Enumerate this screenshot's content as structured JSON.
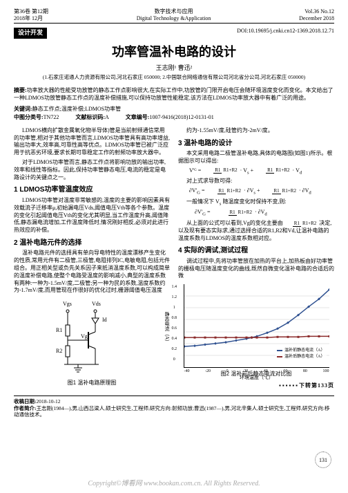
{
  "header": {
    "vol_issue_cn": "第36卷 第12期",
    "date_cn": "2018年 12月",
    "journal_cn": "数字技术与应用",
    "journal_en": "Digital Technology &Application",
    "vol_issue_en": "Vol.36 No.12",
    "date_en": "December 2018"
  },
  "section_tag": "设计开发",
  "doi": "DOI:10.19695/j.cnki.cn12-1369.2018.12.71",
  "title": "功率管温补电路的设计",
  "authors": "王志刚¹ 曹迅²",
  "affiliations": "(1.石家庄诺通人力资源有限公司,河北石家庄 050000;\n2.中国联合网络通信有限公司河北省分公司,河北石家庄 050000)",
  "abstract_label": "摘要:",
  "abstract_text": "功率放大器的性能受功放管的静态工作点影响很大,在实际工作中,功放管的门限开启电压会随环境温度变化而变化。本文给出了一种LDMOS功放管静态工作点的温度补偿措施,可以保持功放管性能稳定,该方法在LDMOS功率放大器中有着广泛的用途。",
  "keywords_label": "关键词:",
  "keywords_text": "静态工作点;温度补偿;LDMOS功率管",
  "class_no_label": "中图分类号:",
  "class_no": "TN722",
  "doc_code_label": "文献标识码:",
  "doc_code": "A",
  "article_no_label": "文章编号:",
  "article_no": "1007-9416(2018)12-0131-01",
  "col1": {
    "p1": "LDMOS横向扩散金属氧化物半导体)管是当前射频通信常用的功率管,相对于其他功率管而言,LDMOS功率管具有高功率增益,输出功率大,效率高,可靠性高等优点。LDMOS功率管已被广泛应用于抗恶劣环境,要求长期可靠稳定工作的射频功率放大器中。",
    "p2": "对于LDMOS功率管而言,静态工作点将影响功放的输出功率,效率和线性等指标。因此,保持功率管静态电压,电流的稳定是电路设计的关键点之一。",
    "h3_1": "1 LDMOS功率管温度效应",
    "p3": "LDMOS功率管对温度非常敏感的,温度的主要的影响因素具有效载流子迁移率μ,初始漏电压Vds,阈值电压Vth等各个参数。温度的变化引起阈值电压Vth的变化尤其明显,当工作温度升高,阈值降低,静态漏电流增加,工作温度降低时,情况刚好相反,必须对此进行热效应的补偿。",
    "h3_2": "2 温补电路元件的选择",
    "p4": "温补电路元件的选择具有单向导电特性的温度漂移产生变化的性质,常用元件有二极管,三极管,电阻排列IC,电敏电阻,包括元件组合。用正相关型或负先关系因子来抵消温度系数,可以构成简单的温度补偿电路,使整个电路受温度的影响减小,典型的温度系数有两种:一种为-1.5mV/度,二极管;另一种为民的系数,温度系数约为-1.7mV/度,而用管现在作很好的优化过时,栅源阈值电压温度",
    "fig1_caption": "图1 温补电路原理图",
    "circuit_labels": {
      "vgs": "Vgs",
      "vds": "Vds",
      "id": "Id",
      "r1": "R1",
      "r2": "R2",
      "vg": "Vg"
    }
  },
  "col2": {
    "p1": "约为-1.55mV/度,硅管约为-2mV/度。",
    "h3_3": "3 温补电路的设计",
    "p2": "本文采用电路二极管温补电路,具体的电路图(如图1)所示。根据图示可以得出:",
    "formula1_a": "V'ᴳ",
    "formula1_b": "R1",
    "formula1_c": "R1+R2",
    "formula1_d": "R1",
    "formula1_e": "R1+R2",
    "p3": "对上式求导数可得:",
    "formula2_a": "一般情况下",
    "formula2_b": "V",
    "formula2_c": "随温度变化时保持不变,则:",
    "formula3": " R1",
    "p4": "从上面的公式可以看到,Vg的变化主要由",
    "p4b": "决定,以及现有要态实际求,通过选择合适的R1,R2和Vd,让温补电路的温度系数与LDMOS的温度系数相对应。",
    "h3_4": "4 实际的调试,测试过程",
    "p5": "调试过程中,先将功率管放在加热的平台上,加热板由好功率管的栅极电压随温度变化的曲线,既然自微变化温补电路的合适后的微",
    "chart": {
      "ylabel": "静态电流（A）",
      "xlabel": "环境温度（℃）",
      "ymin": 0,
      "ymax": 1.4,
      "ystep": 0.2,
      "xmin": -40,
      "xmax": 100,
      "xstep": 20,
      "series1_name": "温补前静态电流（A）",
      "series1_color": "#2e5090",
      "series1_x": [
        -40,
        -30,
        -20,
        -10,
        0,
        10,
        20,
        25,
        30,
        40,
        50,
        60,
        70,
        80,
        90,
        100
      ],
      "series1_y": [
        0.35,
        0.36,
        0.38,
        0.4,
        0.42,
        0.45,
        0.48,
        0.5,
        0.52,
        0.58,
        0.65,
        0.75,
        0.88,
        1.02,
        1.15,
        1.31
      ],
      "series2_name": "温补后静态电流（A）",
      "series2_color": "#8b2a2a",
      "series2_x": [
        -40,
        -30,
        -20,
        -10,
        0,
        10,
        20,
        25,
        30,
        40,
        50,
        60,
        70,
        80,
        90,
        100
      ],
      "series2_y": [
        0.5,
        0.5,
        0.5,
        0.5,
        0.5,
        0.5,
        0.5,
        0.5,
        0.5,
        0.5,
        0.51,
        0.51,
        0.51,
        0.52,
        0.52,
        0.52
      ]
    },
    "fig2_caption": "图2 温补前后静态电流对比图",
    "cont_text": "下转第133页"
  },
  "receipt": {
    "date_label": "收稿日期:",
    "date": "2018-10-12",
    "author_bio_label": "作者简介:",
    "author_bio": "王志刚(1984—),男,山西吕梁人,硕士研究生,工程师,研究方向:射频功放;曹迅(1987—),男,河北辛集人,硕士研究生,工程师,研究方向:移动通信技术。"
  },
  "pagenum": "131",
  "footer": "Copyright©博看网 www.bookan.com.cn. All Rights Reserved."
}
